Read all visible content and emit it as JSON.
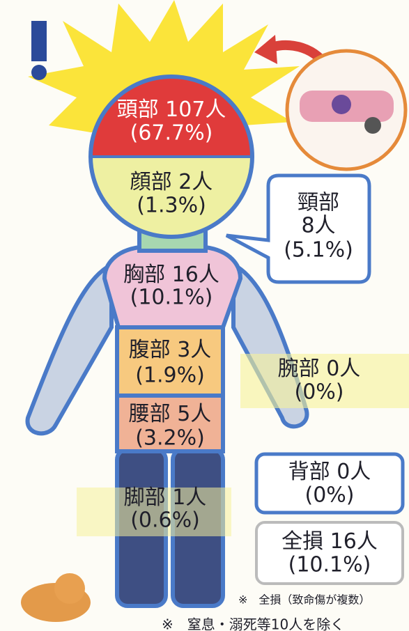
{
  "labels": [
    {
      "name": "頭部",
      "count": "107人",
      "percent": "(67.7%)"
    },
    {
      "name": "顔部",
      "count": "2人",
      "percent": "(1.3%)"
    },
    {
      "name": "頸部",
      "count": "8人",
      "percent": "(5.1%)"
    },
    {
      "name": "胸部",
      "count": "16人",
      "percent": "(10.1%)"
    },
    {
      "name": "腹部",
      "count": "3人",
      "percent": "(1.9%)"
    },
    {
      "name": "腕部",
      "count": "0人",
      "percent": "(0%)"
    },
    {
      "name": "腰部",
      "count": "5人",
      "percent": "(3.2%)"
    },
    {
      "name": "背部",
      "count": "0人",
      "percent": "(0%)"
    },
    {
      "name": "脚部",
      "count": "1人",
      "percent": "(0.6%)"
    },
    {
      "name": "全損",
      "count": "16人",
      "percent": "(10.1%)"
    }
  ],
  "notes": [
    "※　全損（致命傷が複数）",
    "※　窒息・溺死等10人を除く"
  ]
}
